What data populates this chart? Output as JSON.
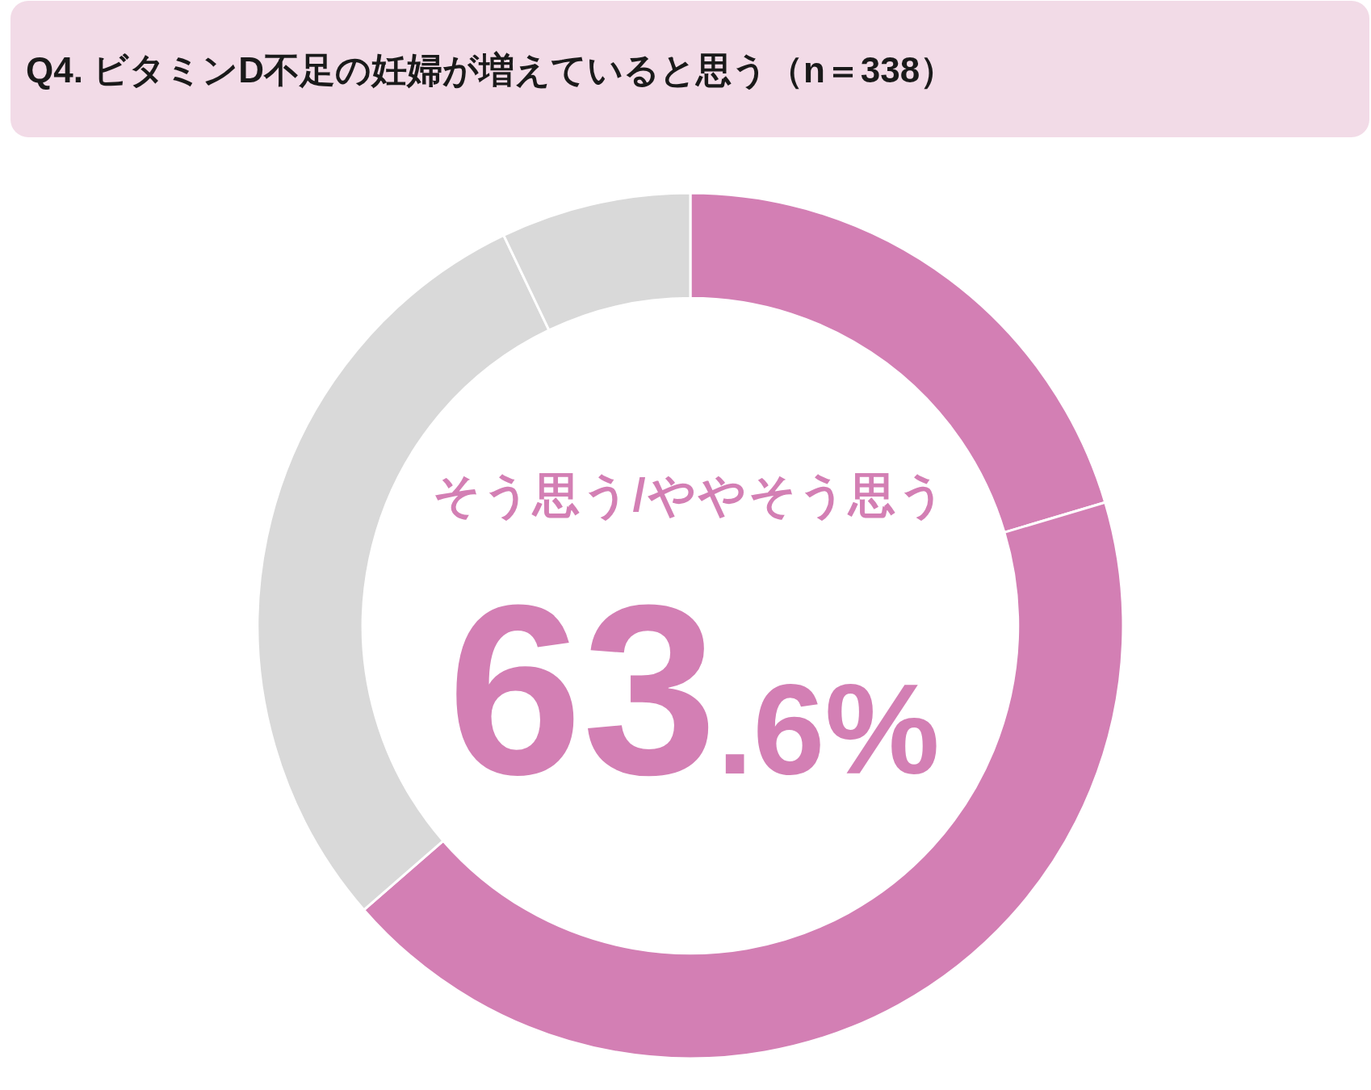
{
  "chart_data": {
    "type": "donut",
    "title": "Q4. ビタミンD不足の妊婦が増えていると思う（n＝338）",
    "categories": [
      null,
      null,
      null,
      null
    ],
    "values": [
      20.4,
      43.2,
      29.3,
      7.1
    ],
    "colors": [
      "#d37fb4",
      "#d37fb4",
      "#d9d9d9",
      "#d9d9d9"
    ],
    "annotations": [
      "そう思う/ややそう思う",
      "63.6%"
    ]
  }
}
